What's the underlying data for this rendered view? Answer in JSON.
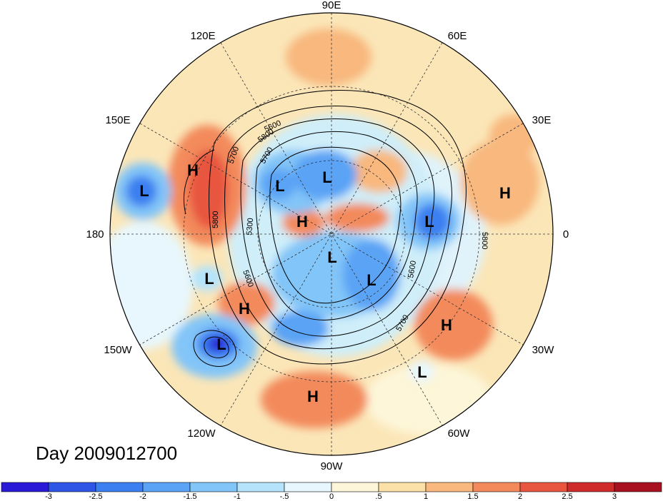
{
  "title": "Day 2009012700",
  "lon_labels": {
    "n90e": "90E",
    "n120e": "120E",
    "n60e": "60E",
    "n150e": "150E",
    "n30e": "30E",
    "n180": "180",
    "n0": "0",
    "n150w": "150W",
    "n30w": "30W",
    "n120w": "120W",
    "n60w": "60W",
    "n90w": "90W"
  },
  "contour_labels": [
    "5600",
    "5700",
    "5800",
    "5300",
    "5600",
    "5700",
    "5800",
    "5600",
    "5700",
    "5800"
  ],
  "pressure_centers": [
    {
      "label": "H"
    },
    {
      "label": "L"
    },
    {
      "label": "L"
    },
    {
      "label": "L"
    },
    {
      "label": "H"
    },
    {
      "label": "H"
    },
    {
      "label": "L"
    },
    {
      "label": "L"
    },
    {
      "label": "L"
    },
    {
      "label": "L"
    },
    {
      "label": "H"
    },
    {
      "label": "H"
    },
    {
      "label": "L"
    },
    {
      "label": "H"
    },
    {
      "label": "L"
    }
  ],
  "colorbar": {
    "ticks": [
      "-3",
      "-2.5",
      "-2",
      "-1.5",
      "-1",
      "-.5",
      "0",
      ".5",
      "1",
      "1.5",
      "2",
      "2.5",
      "3"
    ],
    "colors": [
      "#2a19d6",
      "#2f55e6",
      "#3b7ff0",
      "#5aa3f5",
      "#82c5f8",
      "#b4e3fb",
      "#e8f7fd",
      "#fdf6d8",
      "#fbe0a8",
      "#f8b87e",
      "#f38a5c",
      "#e85640",
      "#cf2b2b",
      "#a8111f"
    ]
  }
}
